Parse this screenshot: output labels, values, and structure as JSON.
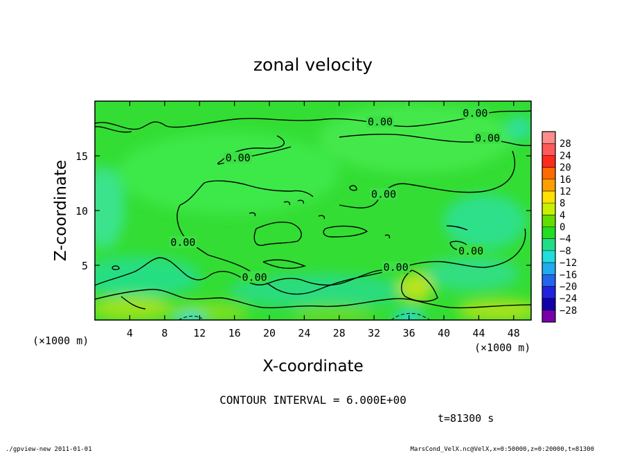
{
  "chart_data": {
    "type": "heatmap",
    "title": "zonal velocity",
    "xlabel": "X-coordinate",
    "ylabel": "Z-coordinate",
    "x_unit_left": "(×1000 m)",
    "x_unit_right": "(×1000 m)",
    "xlim": [
      0,
      50
    ],
    "ylim": [
      0,
      20
    ],
    "x_ticks": [
      4,
      8,
      12,
      16,
      20,
      24,
      28,
      32,
      36,
      40,
      44,
      48
    ],
    "y_ticks": [
      5,
      10,
      15
    ],
    "colorbar": {
      "labels": [
        "28",
        "24",
        "20",
        "16",
        "12",
        "8",
        "4",
        "0",
        "−4",
        "−8",
        "−12",
        "−16",
        "−20",
        "−24",
        "−28"
      ],
      "colors": [
        "#ff8c8c",
        "#ff5a5a",
        "#ff2a1e",
        "#ff6a00",
        "#ff9e00",
        "#ffe000",
        "#c8f000",
        "#66dd00",
        "#22dd22",
        "#22dd88",
        "#22dddd",
        "#22aaee",
        "#2266ee",
        "#2222dd",
        "#1100aa",
        "#7700aa"
      ]
    },
    "contour_labels": [
      {
        "text": "0.00",
        "x": 43.6,
        "z": 18.9
      },
      {
        "text": "0.00",
        "x": 32.7,
        "z": 18.1
      },
      {
        "text": "0.00",
        "x": 45.0,
        "z": 16.6
      },
      {
        "text": "0.00",
        "x": 16.4,
        "z": 14.8
      },
      {
        "text": "0.00",
        "x": 33.1,
        "z": 11.5
      },
      {
        "text": "0.00",
        "x": 10.1,
        "z": 7.1
      },
      {
        "text": "0.00",
        "x": 43.1,
        "z": 6.3
      },
      {
        "text": "0.00",
        "x": 34.5,
        "z": 4.8
      },
      {
        "text": "0.00",
        "x": 18.3,
        "z": 3.9
      }
    ],
    "contour_interval": "CONTOUR INTERVAL = 6.000E+00",
    "time_label": "t=81300 s"
  },
  "footer": {
    "left": "./gpview-new  2011-01-01",
    "right": "MarsCond_VelX.nc@VelX,x=0:50000,z=0:20000,t=81300"
  }
}
